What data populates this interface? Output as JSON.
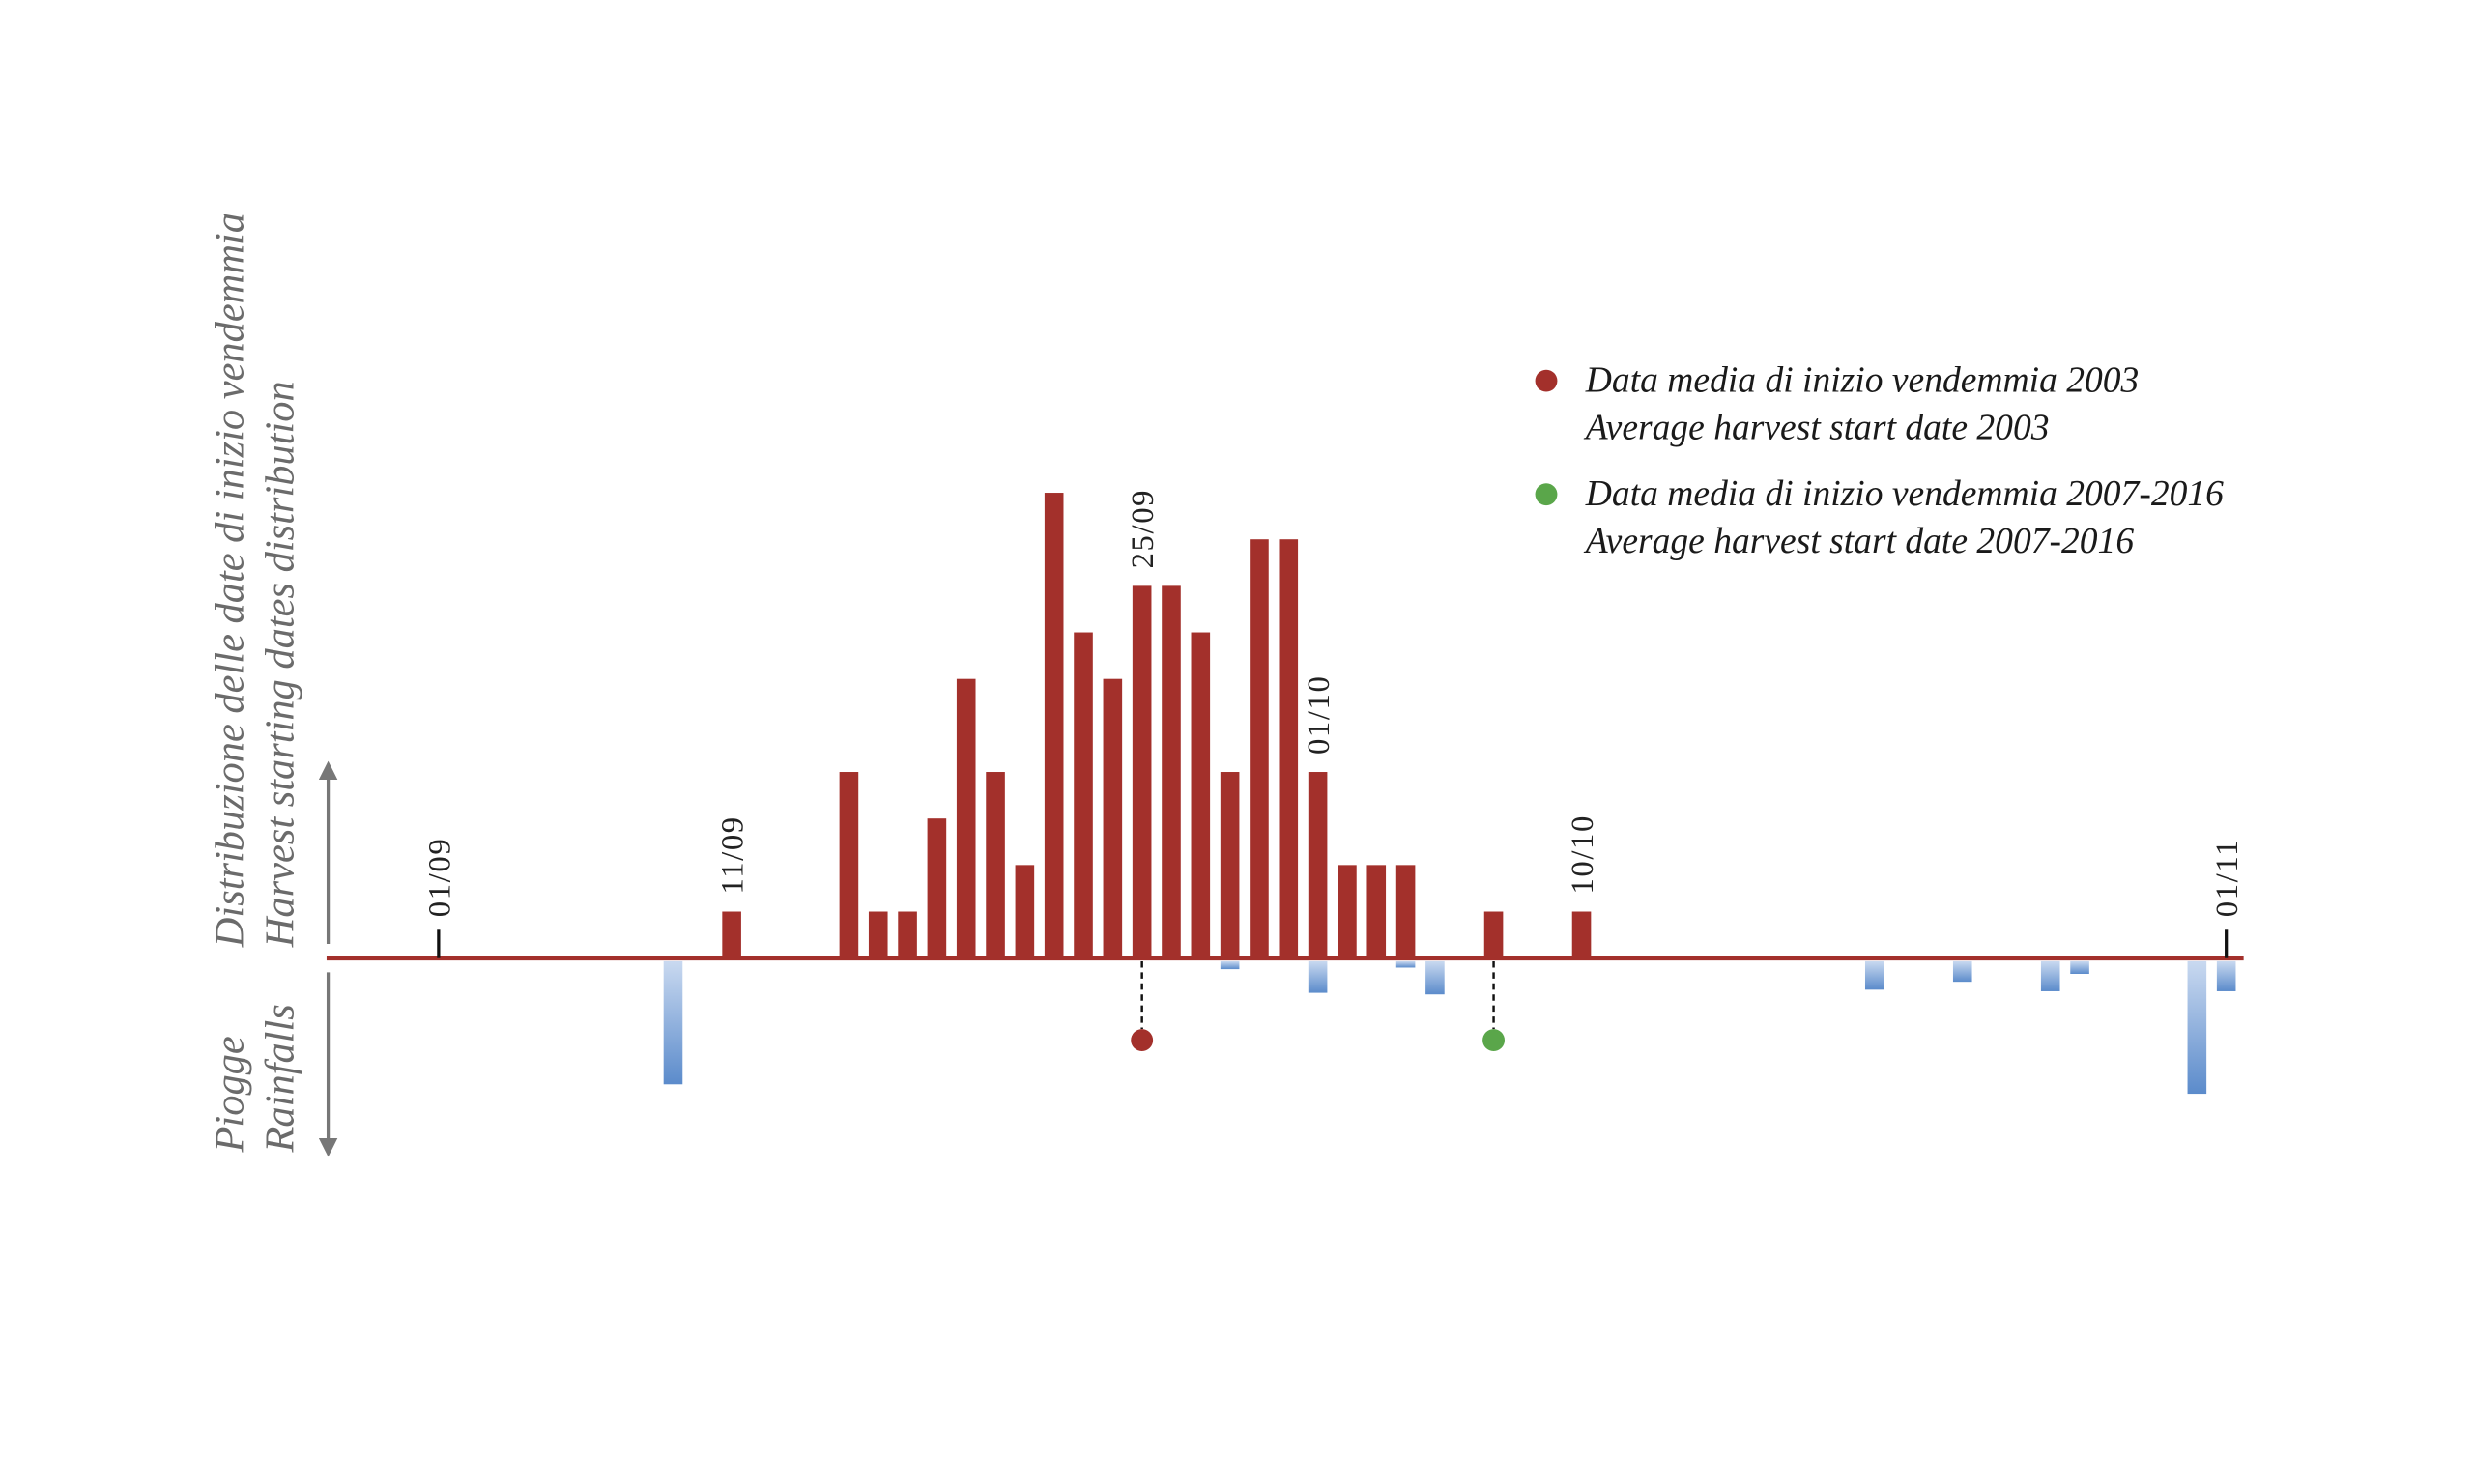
{
  "chart_data": {
    "type": "bar",
    "categories": [
      "01/09",
      null,
      null,
      null,
      null,
      null,
      null,
      null,
      null,
      null,
      "11/09",
      null,
      null,
      null,
      null,
      null,
      null,
      null,
      null,
      null,
      null,
      null,
      null,
      null,
      "25/09",
      null,
      null,
      null,
      null,
      null,
      "01/10",
      null,
      null,
      null,
      null,
      null,
      null,
      null,
      null,
      "10/10",
      null,
      null,
      null,
      null,
      null,
      null,
      null,
      null,
      null,
      null,
      null,
      null,
      null,
      null,
      null,
      null,
      null,
      null,
      null,
      null,
      null,
      "01/11"
    ],
    "harvest": {
      "color": "#a3302b",
      "values": [
        0,
        0,
        0,
        0,
        0,
        0,
        0,
        0,
        0,
        0,
        1,
        0,
        0,
        0,
        4,
        1,
        1,
        3,
        6,
        4,
        2,
        10,
        7,
        6,
        8,
        8,
        7,
        4,
        9,
        9,
        4,
        2,
        2,
        2,
        0,
        0,
        1,
        0,
        0,
        1,
        0,
        0,
        0,
        0,
        0,
        0,
        0,
        0,
        0,
        0,
        0,
        0,
        0,
        0,
        0,
        0,
        0,
        0,
        0,
        0,
        0,
        0
      ]
    },
    "rainfall": {
      "color": "#6f98d4",
      "values": [
        0,
        0,
        0,
        0,
        0,
        0,
        0,
        0,
        39,
        0,
        0,
        0,
        0,
        0,
        0,
        0,
        0,
        0,
        0,
        0,
        0,
        0,
        0,
        0,
        0,
        0,
        0,
        2.5,
        0,
        0,
        10,
        0,
        0,
        2,
        10.5,
        0,
        0,
        0,
        0,
        0,
        0,
        0,
        0,
        0,
        0,
        0,
        0,
        0,
        0,
        9,
        0,
        0,
        6.5,
        0,
        0,
        9.5,
        4,
        0,
        0,
        0,
        42,
        9.5
      ]
    },
    "y_label_top": [
      "Distribuzione delle date di inizio vendemmia",
      "Harvest starting dates distribution"
    ],
    "y_label_bottom": [
      "Piogge",
      "Rainfalls"
    ],
    "markers": [
      {
        "labels": [
          "Data media di inizio vendemmia 2003",
          "Average harvest start date 2003"
        ],
        "color": "#a3302b",
        "x": 24
      },
      {
        "labels": [
          "Data media di inizio vendemmia 2007-2016",
          "Average harvest start date 2007-2016"
        ],
        "color": "#5aa64a",
        "x": 36
      }
    ]
  }
}
